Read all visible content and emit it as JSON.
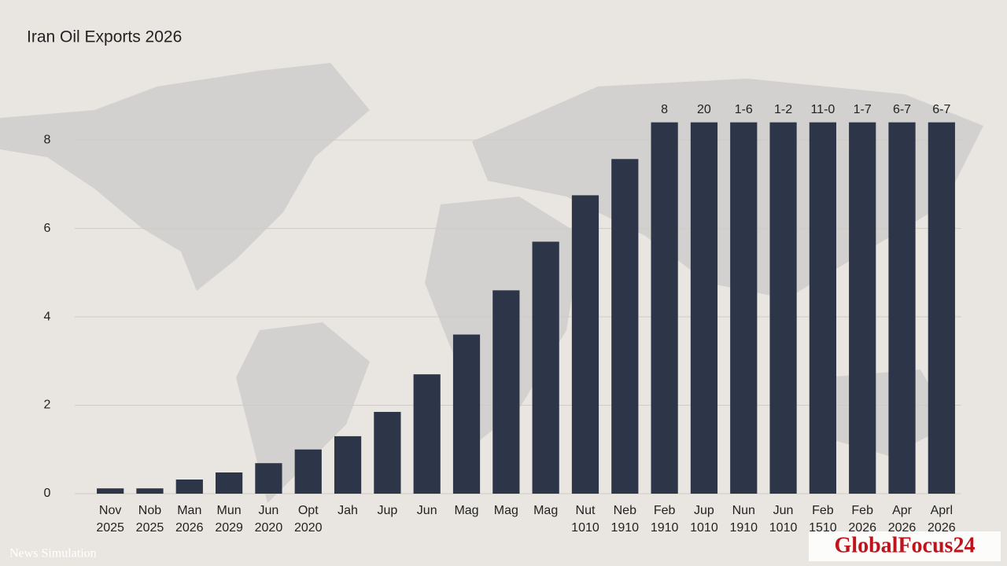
{
  "chart_data": {
    "type": "bar",
    "title": "Iran Oil Exports 2026",
    "categories": [
      "Nov 2025",
      "Nob 2025",
      "Man 2026",
      "Mun 2029",
      "Jun 2020",
      "Opt 2020",
      "Jah",
      "Jup",
      "Jun",
      "Mag",
      "Mag",
      "Mag",
      "Nut 1010",
      "Neb 1910",
      "Feb 1910",
      "Jup 1010",
      "Nun 1910",
      "Jun 1010",
      "Feb 1510",
      "Feb 2026",
      "Apr 2026",
      "Aprl 2026"
    ],
    "values": [
      0.12,
      0.12,
      0.32,
      0.48,
      0.69,
      1.0,
      1.3,
      1.85,
      2.7,
      3.6,
      4.6,
      5.7,
      6.75,
      7.57,
      8.4,
      8.4,
      8.4,
      8.4,
      8.4,
      8.4,
      8.4,
      8.4
    ],
    "bar_annotations": [
      null,
      null,
      null,
      null,
      null,
      null,
      null,
      null,
      null,
      null,
      null,
      null,
      null,
      null,
      "8",
      "20",
      "1-6",
      "1-2",
      "11-0",
      "1-7",
      "6-7",
      "6-7"
    ],
    "color": "#2d3648",
    "ylim": [
      0,
      8.5
    ],
    "yticks": [
      0,
      2,
      4,
      6,
      8
    ],
    "grid": true,
    "footer": "News Simulation",
    "watermark": "GlobalFocus24"
  }
}
